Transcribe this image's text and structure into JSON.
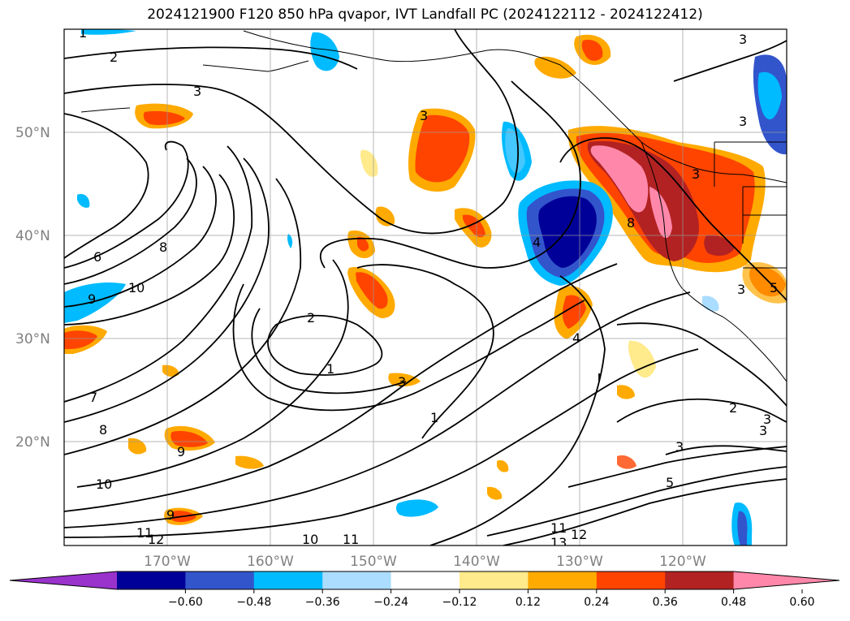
{
  "title": "2024121900 F120 850 hPa qvapor, IVT Landfall PC (2024122112 - 2024122412)",
  "lat_ticks": [
    "50°N",
    "40°N",
    "30°N",
    "20°N"
  ],
  "lon_ticks": [
    "170°W",
    "160°W",
    "150°W",
    "140°W",
    "130°W",
    "120°W"
  ],
  "colorbar": {
    "colors": [
      "#9933cc",
      "#000099",
      "#3355cc",
      "#00bbff",
      "#aaddff",
      "#ffffff",
      "#ffea8c",
      "#ffaa00",
      "#ff4400",
      "#b22222",
      "#ff88aa"
    ],
    "ticks": [
      "−0.60",
      "−0.48",
      "−0.36",
      "−0.24",
      "−0.12",
      "0.12",
      "0.24",
      "0.36",
      "0.48",
      "0.60"
    ]
  },
  "contour_labels": [
    "1",
    "2",
    "3",
    "3",
    "3",
    "3",
    "3",
    "6",
    "8",
    "9",
    "10",
    "2",
    "1",
    "3",
    "4",
    "7",
    "8",
    "9",
    "10",
    "11",
    "12",
    "1",
    "4",
    "8",
    "3",
    "5",
    "3",
    "2",
    "3",
    "3",
    "5",
    "9",
    "11",
    "12",
    "10",
    "11",
    "13"
  ]
}
